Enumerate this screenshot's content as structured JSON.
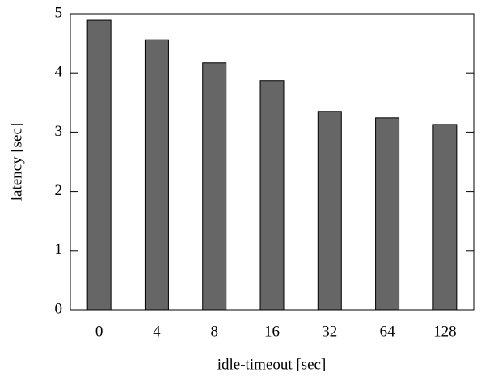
{
  "chart_data": {
    "type": "bar",
    "xlabel": "idle-timeout [sec]",
    "ylabel": "latency [sec]",
    "categories": [
      "0",
      "4",
      "8",
      "16",
      "32",
      "64",
      "128"
    ],
    "values": [
      4.89,
      4.56,
      4.17,
      3.87,
      3.35,
      3.24,
      3.13
    ],
    "color": "#666666",
    "ylim": [
      0,
      5
    ],
    "yticks": [
      0,
      1,
      2,
      3,
      4,
      5
    ],
    "grid": false
  }
}
